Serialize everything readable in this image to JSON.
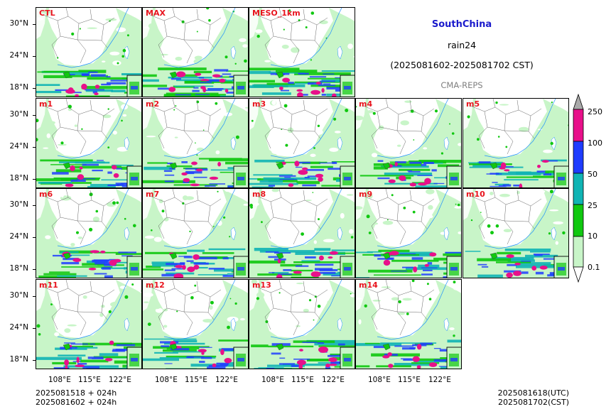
{
  "header": {
    "region": "SouthChina",
    "variable": "rain24",
    "period": "(2025081602-2025081702 CST)",
    "system": "CMA-REPS"
  },
  "panels": [
    {
      "id": "CTL",
      "label": "CTL",
      "intensity": 0.7
    },
    {
      "id": "MAX",
      "label": "MAX",
      "intensity": 1.2
    },
    {
      "id": "MESO",
      "label": "MESO_1km",
      "intensity": 1.0
    },
    {
      "id": "m1",
      "label": "m1",
      "intensity": 0.8
    },
    {
      "id": "m2",
      "label": "m2",
      "intensity": 0.9
    },
    {
      "id": "m3",
      "label": "m3",
      "intensity": 0.85
    },
    {
      "id": "m4",
      "label": "m4",
      "intensity": 0.75
    },
    {
      "id": "m5",
      "label": "m5",
      "intensity": 0.6
    },
    {
      "id": "m6",
      "label": "m6",
      "intensity": 0.8
    },
    {
      "id": "m7",
      "label": "m7",
      "intensity": 0.75
    },
    {
      "id": "m8",
      "label": "m8",
      "intensity": 0.8
    },
    {
      "id": "m9",
      "label": "m9",
      "intensity": 0.7
    },
    {
      "id": "m10",
      "label": "m10",
      "intensity": 0.6
    },
    {
      "id": "m11",
      "label": "m11",
      "intensity": 0.85
    },
    {
      "id": "m12",
      "label": "m12",
      "intensity": 0.85
    },
    {
      "id": "m13",
      "label": "m13",
      "intensity": 0.8
    },
    {
      "id": "m14",
      "label": "m14",
      "intensity": 0.75
    }
  ],
  "axes": {
    "y_labels": [
      "30°N",
      "24°N",
      "18°N"
    ],
    "x_labels": [
      "108°E",
      "115°E",
      "122°E"
    ]
  },
  "colorbar": {
    "labels": [
      "250",
      "100",
      "50",
      "25",
      "10",
      "0.1"
    ],
    "colors": [
      "#aaaaaa",
      "#e8108a",
      "#1e3cff",
      "#10b4b4",
      "#10c810",
      "#c8f5c8",
      "#ffffff"
    ]
  },
  "footer": {
    "left_line1": "2025081518  +  024h",
    "left_line2": "2025081602  +  024h",
    "right_line1": "2025081618(UTC)",
    "right_line2": "2025081702(CST)"
  }
}
